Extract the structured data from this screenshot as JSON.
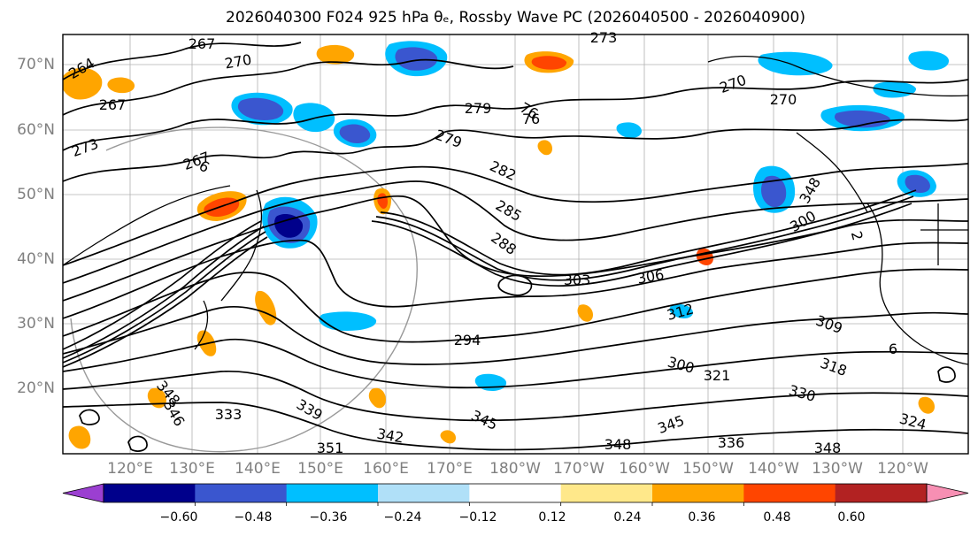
{
  "title": "2026040300 F024 925 hPa θₑ, Rossby Wave PC (2026040500 - 2026040900)",
  "lat_ticks": [
    "70°N",
    "60°N",
    "50°N",
    "40°N",
    "30°N",
    "20°N"
  ],
  "lon_ticks": [
    "120°E",
    "130°E",
    "140°E",
    "150°E",
    "160°E",
    "170°E",
    "180°W",
    "170°W",
    "160°W",
    "150°W",
    "140°W",
    "130°W",
    "120°W"
  ],
  "colorbar": {
    "levels": [
      "−0.60",
      "−0.48",
      "−0.36",
      "−0.24",
      "−0.12",
      "0.12",
      "0.24",
      "0.36",
      "0.48",
      "0.60"
    ],
    "colors": [
      "#9b3fd1",
      "#00008b",
      "#3a56cf",
      "#00bfff",
      "#b0e0f8",
      "#ffffff",
      "#ffe88a",
      "#ffa500",
      "#ff4500",
      "#b22222",
      "#f78fb3"
    ]
  },
  "contour_labels": [
    "267",
    "273",
    "264",
    "270",
    "267",
    "273",
    "270",
    "76",
    "6",
    "279",
    "282",
    "285",
    "288",
    "300",
    "303",
    "306",
    "312",
    "309",
    "294",
    "300",
    "321",
    "318",
    "330",
    "324",
    "333",
    "339",
    "345",
    "342",
    "351",
    "348",
    "345",
    "336",
    "348",
    "348",
    "346",
    "348",
    "270",
    "76",
    "279",
    "267",
    "6",
    "2"
  ],
  "anomaly_colors": {
    "blue_light": "#00bfff",
    "blue_mid": "#3a56cf",
    "blue_dark": "#00008b",
    "orange": "#ffa500",
    "red_orange": "#ff4500",
    "yellow": "#ffe88a"
  }
}
